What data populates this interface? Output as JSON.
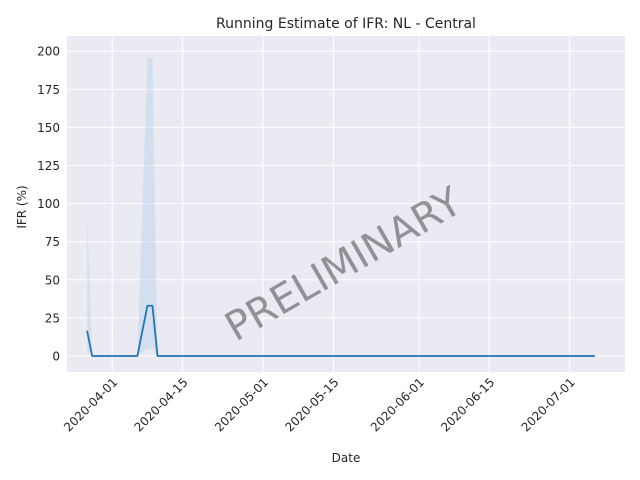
{
  "chart_data": {
    "type": "line",
    "title": "Running Estimate of IFR: NL - Central",
    "xlabel": "Date",
    "ylabel": "IFR (%)",
    "watermark": "PRELIMINARY",
    "x_ticks": [
      "2020-04-01",
      "2020-04-15",
      "2020-05-01",
      "2020-05-15",
      "2020-06-01",
      "2020-06-15",
      "2020-07-01"
    ],
    "y_ticks": [
      0,
      25,
      50,
      75,
      100,
      125,
      150,
      175,
      200
    ],
    "x_range": [
      "2020-03-23",
      "2020-07-12"
    ],
    "ylim": [
      -10.5,
      210
    ],
    "grid": true,
    "series": [
      {
        "type": "line",
        "color": "#1f77b4",
        "points": [
          [
            "2020-03-27",
            16.5
          ],
          [
            "2020-03-28",
            0
          ],
          [
            "2020-04-06",
            0
          ],
          [
            "2020-04-08",
            33
          ],
          [
            "2020-04-09",
            33
          ],
          [
            "2020-04-10",
            0
          ],
          [
            "2020-07-06",
            0
          ]
        ]
      },
      {
        "type": "band",
        "color": "#b9d3ea",
        "upper": [
          [
            "2020-03-27",
            93
          ],
          [
            "2020-03-28",
            0
          ],
          [
            "2020-04-06",
            0
          ],
          [
            "2020-04-08",
            196
          ],
          [
            "2020-04-09",
            196
          ],
          [
            "2020-04-10",
            0
          ],
          [
            "2020-07-06",
            0
          ]
        ],
        "lower": [
          [
            "2020-03-27",
            3
          ],
          [
            "2020-03-28",
            0
          ],
          [
            "2020-04-06",
            0
          ],
          [
            "2020-04-08",
            5
          ],
          [
            "2020-04-09",
            5
          ],
          [
            "2020-04-10",
            0
          ],
          [
            "2020-07-06",
            0
          ]
        ]
      }
    ]
  }
}
